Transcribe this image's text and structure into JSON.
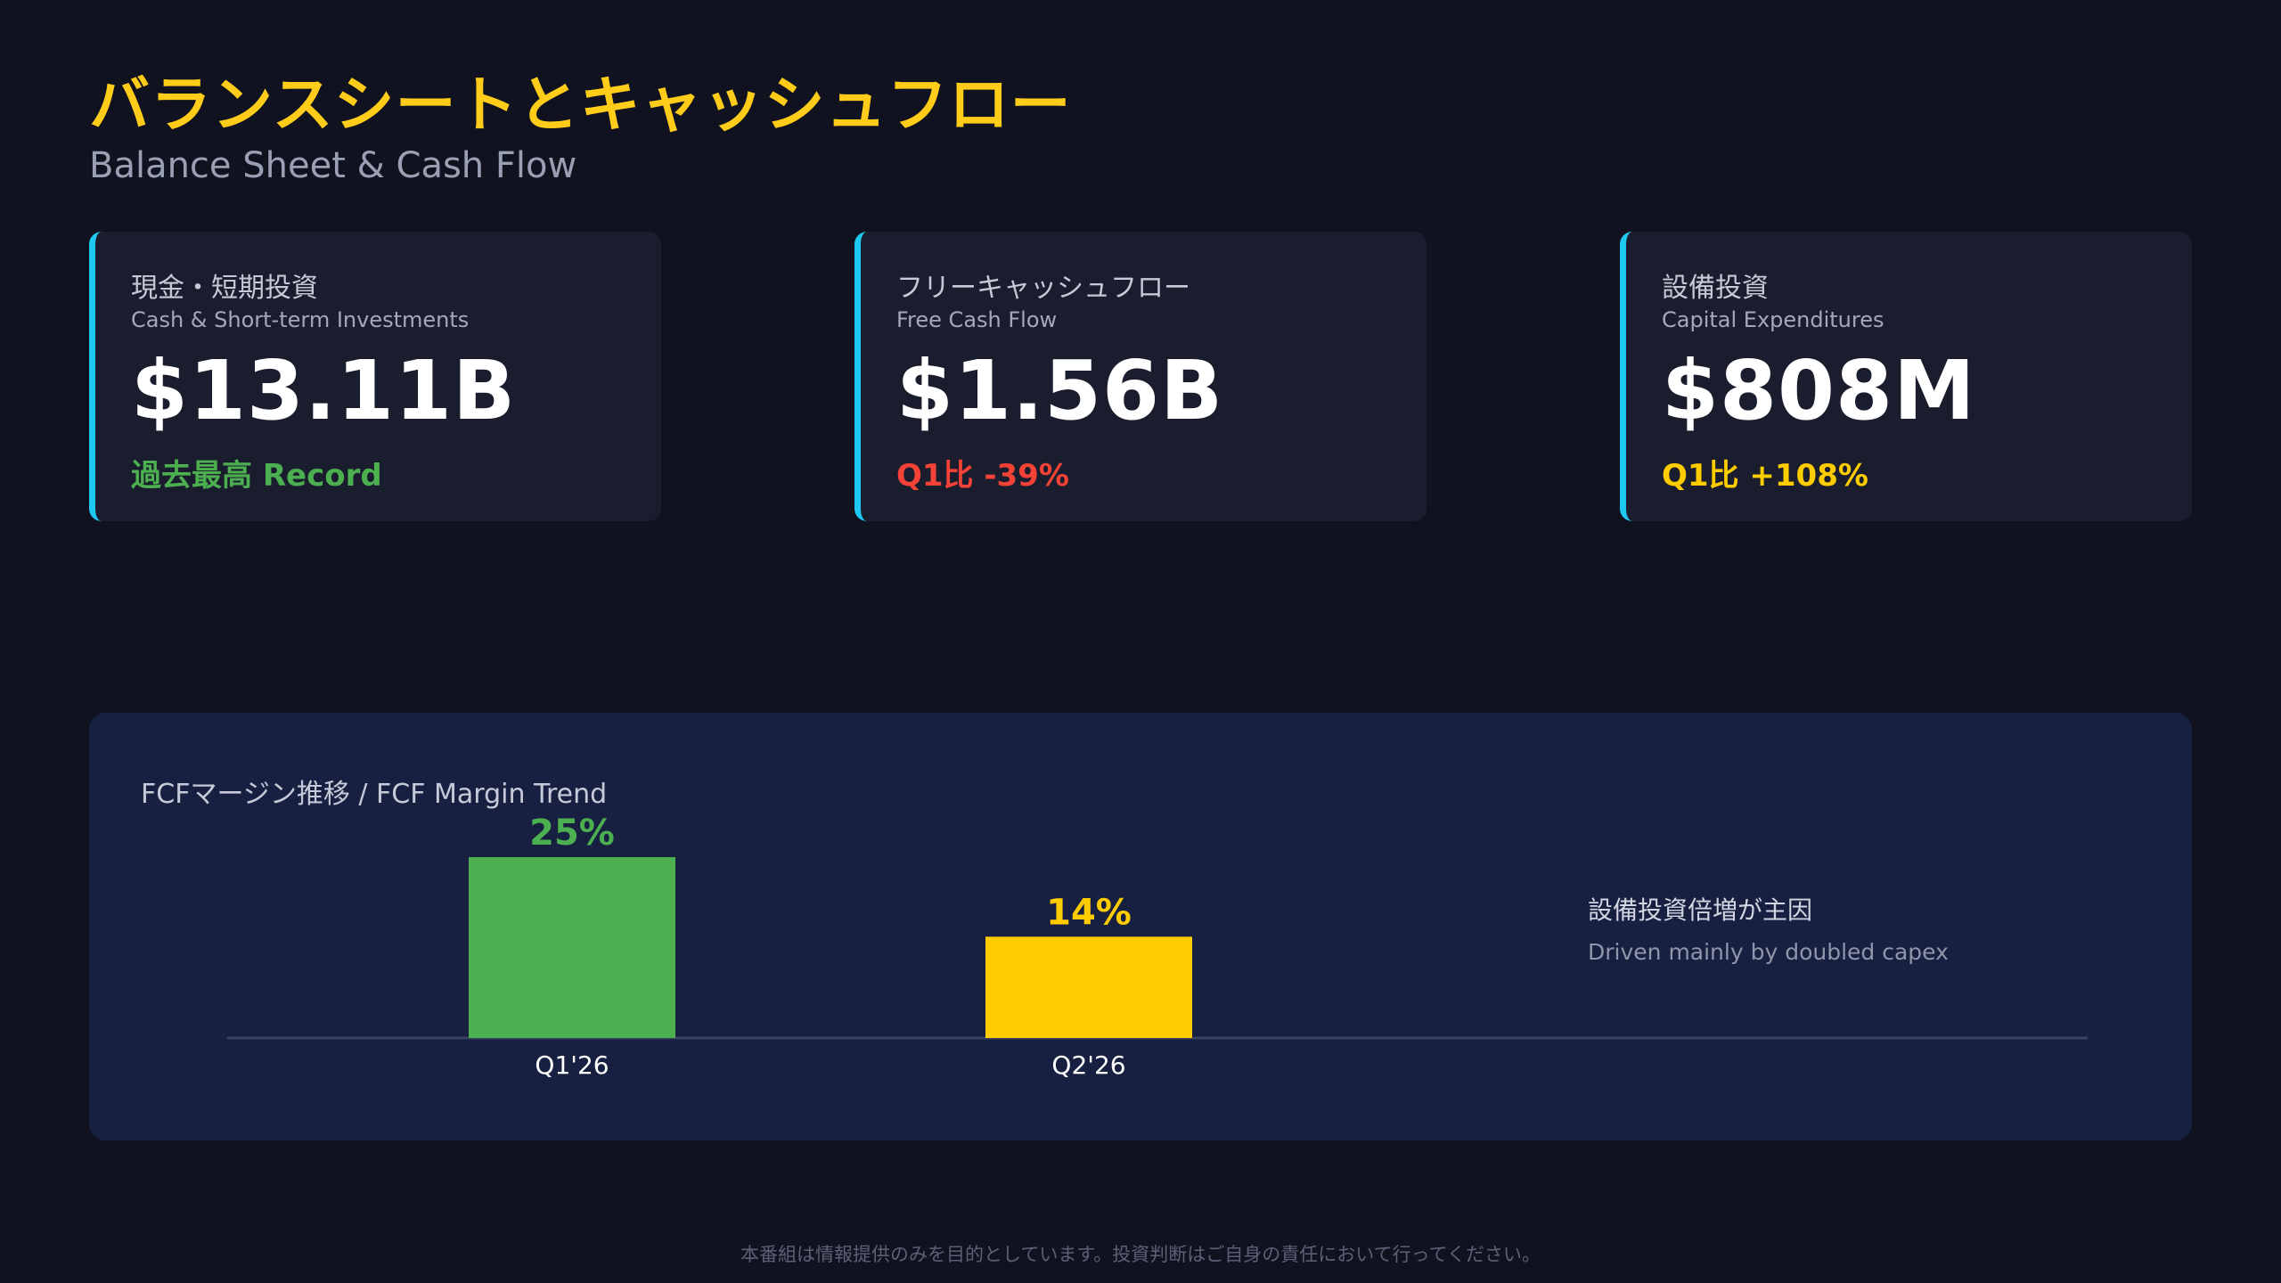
{
  "header": {
    "title": "バランスシートとキャッシュフロー",
    "subtitle": "Balance Sheet & Cash Flow"
  },
  "kpis": [
    {
      "label": "現金・短期投資",
      "sublabel": "Cash & Short-term Investments",
      "value": "$13.11B",
      "note": "過去最高 Record",
      "note_color": "#4caf50"
    },
    {
      "label": "フリーキャッシュフロー",
      "sublabel": "Free Cash Flow",
      "value": "$1.56B",
      "note": "Q1比 -39%",
      "note_color": "#f44336"
    },
    {
      "label": "設備投資",
      "sublabel": "Capital Expenditures",
      "value": "$808M",
      "note": "Q1比 +108%",
      "note_color": "#ffcc00"
    }
  ],
  "colors": {
    "accent_border": "#1ec8f0",
    "title": "#ffcc1a",
    "background": "#10121f",
    "card": "#1a1d2e",
    "chart_panel": "#172040"
  },
  "chart": {
    "title": "FCFマージン推移 / FCF Margin Trend",
    "annotation_ja": "設備投資倍増が主因",
    "annotation_en": "Driven mainly by doubled capex"
  },
  "chart_data": {
    "type": "bar",
    "title": "FCFマージン推移 / FCF Margin Trend",
    "categories": [
      "Q1'26",
      "Q2'26"
    ],
    "values": [
      25,
      14
    ],
    "value_labels": [
      "25%",
      "14%"
    ],
    "colors": [
      "#4caf50",
      "#ffcc00"
    ],
    "xlabel": "",
    "ylabel": "",
    "ylim": [
      0,
      25
    ],
    "grid": false,
    "legend": "none"
  },
  "footer": {
    "disclaimer": "本番組は情報提供のみを目的としています。投資判断はご自身の責任において行ってください。"
  }
}
